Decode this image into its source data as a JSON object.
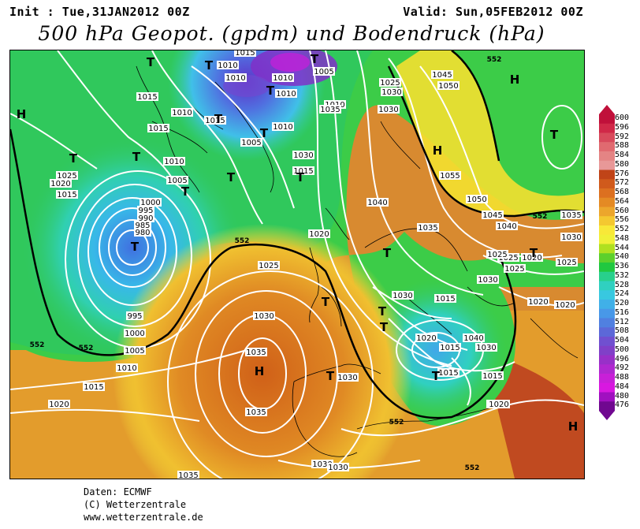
{
  "header": {
    "init": "Init : Tue,31JAN2012 00Z",
    "valid": "Valid: Sun,05FEB2012 00Z",
    "title": "500 hPa Geopot. (gpdm) und Bodendruck (hPa)"
  },
  "legend": {
    "values": [
      "600",
      "596",
      "592",
      "588",
      "584",
      "580",
      "576",
      "572",
      "568",
      "564",
      "560",
      "556",
      "552",
      "548",
      "544",
      "540",
      "536",
      "532",
      "528",
      "524",
      "520",
      "516",
      "512",
      "508",
      "504",
      "500",
      "496",
      "492",
      "488",
      "484",
      "480",
      "476"
    ],
    "colors": [
      "#c0103a",
      "#d02848",
      "#d84a5c",
      "#e06a70",
      "#e48484",
      "#e89898",
      "#c04418",
      "#d05a1c",
      "#dc7020",
      "#e48a24",
      "#eca62c",
      "#f4c830",
      "#f8e838",
      "#f0f038",
      "#b0e020",
      "#5cd02c",
      "#20c840",
      "#28d08c",
      "#30d0c0",
      "#38c8e0",
      "#40b0e8",
      "#4898e8",
      "#5080e0",
      "#5c68d8",
      "#7050d0",
      "#8040c8",
      "#9830c8",
      "#b028d0",
      "#c820d8",
      "#d818e0",
      "#a010c0",
      "#700890"
    ]
  },
  "map": {
    "pressure_labels": [
      {
        "text": "1015"
      },
      {
        "text": "1010"
      },
      {
        "text": "1010"
      },
      {
        "text": "1010"
      },
      {
        "text": "1005"
      },
      {
        "text": "1010"
      },
      {
        "text": "1015"
      },
      {
        "text": "1010"
      },
      {
        "text": "1015"
      },
      {
        "text": "1015"
      },
      {
        "text": "1010"
      },
      {
        "text": "1005"
      },
      {
        "text": "1010"
      },
      {
        "text": "1005"
      },
      {
        "text": "1025"
      },
      {
        "text": "1020"
      },
      {
        "text": "1015"
      },
      {
        "text": "1000"
      },
      {
        "text": "995"
      },
      {
        "text": "990"
      },
      {
        "text": "985"
      },
      {
        "text": "980"
      },
      {
        "text": "995"
      },
      {
        "text": "1000"
      },
      {
        "text": "1005"
      },
      {
        "text": "1010"
      },
      {
        "text": "1015"
      },
      {
        "text": "1020"
      },
      {
        "text": "1025"
      },
      {
        "text": "1030"
      },
      {
        "text": "1035"
      },
      {
        "text": "1035"
      },
      {
        "text": "1030"
      },
      {
        "text": "1030"
      },
      {
        "text": "1030"
      },
      {
        "text": "1030"
      },
      {
        "text": "1035"
      },
      {
        "text": "1020"
      },
      {
        "text": "1025"
      },
      {
        "text": "1030"
      },
      {
        "text": "1015"
      },
      {
        "text": "1020"
      },
      {
        "text": "1015"
      },
      {
        "text": "1025"
      },
      {
        "text": "1030"
      },
      {
        "text": "1045"
      },
      {
        "text": "1050"
      },
      {
        "text": "1055"
      },
      {
        "text": "1040"
      },
      {
        "text": "1035"
      },
      {
        "text": "1050"
      },
      {
        "text": "1045"
      },
      {
        "text": "1040"
      },
      {
        "text": "1035"
      },
      {
        "text": "1030"
      },
      {
        "text": "1025"
      },
      {
        "text": "1020"
      },
      {
        "text": "1025"
      },
      {
        "text": "1020"
      },
      {
        "text": "1020"
      },
      {
        "text": "1015"
      },
      {
        "text": "1020"
      },
      {
        "text": "1040"
      },
      {
        "text": "1030"
      },
      {
        "text": "1015"
      },
      {
        "text": "1010"
      },
      {
        "text": "1030"
      },
      {
        "text": "1020"
      },
      {
        "text": "1025"
      },
      {
        "text": "1035"
      },
      {
        "text": "1030"
      },
      {
        "text": "1015"
      }
    ],
    "contour_labels": [
      "552",
      "552",
      "552",
      "552",
      "552",
      "552",
      "552"
    ],
    "centers": [
      "T",
      "T",
      "T",
      "T",
      "T",
      "T",
      "T",
      "T",
      "T",
      "T",
      "T",
      "T",
      "H",
      "H",
      "H",
      "H",
      "H",
      "T",
      "T",
      "T",
      "T",
      "T",
      "T",
      "T",
      "T"
    ]
  },
  "credits": {
    "line1": "Daten: ECMWF",
    "line2": "(C) Wetterzentrale",
    "line3": "www.wetterzentrale.de"
  }
}
